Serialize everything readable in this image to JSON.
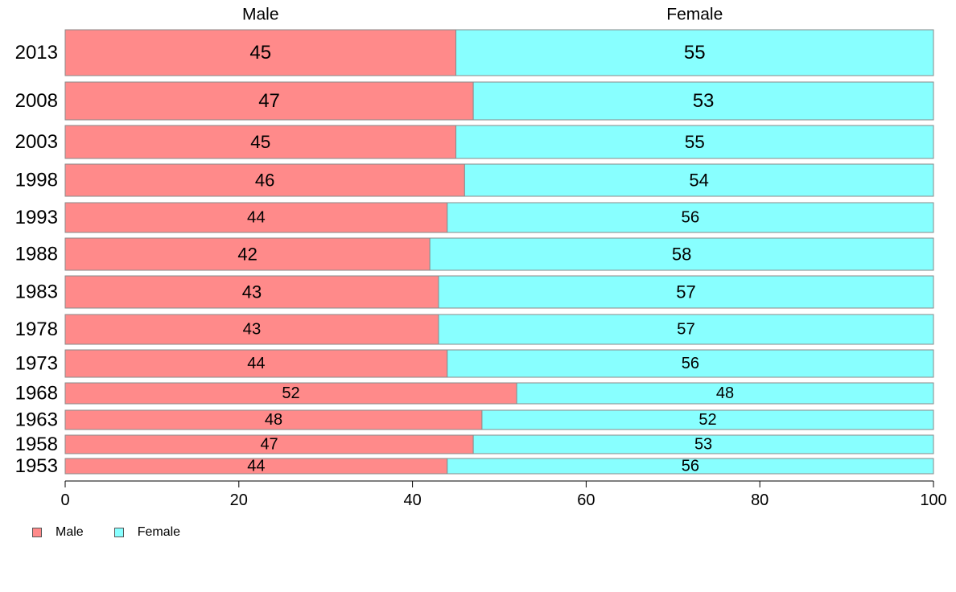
{
  "chart_data": {
    "type": "bar",
    "orientation": "horizontal",
    "stacked": true,
    "categories": [
      "2013",
      "2008",
      "2003",
      "1998",
      "1993",
      "1988",
      "1983",
      "1978",
      "1973",
      "1968",
      "1963",
      "1958",
      "1953"
    ],
    "series": [
      {
        "name": "Male",
        "color": "#ff8a8a",
        "values": [
          45,
          47,
          45,
          46,
          44,
          42,
          43,
          43,
          44,
          52,
          48,
          47,
          44
        ]
      },
      {
        "name": "Female",
        "color": "#88ffff",
        "values": [
          55,
          53,
          55,
          54,
          56,
          58,
          57,
          57,
          56,
          48,
          52,
          53,
          56
        ]
      }
    ],
    "column_headers": [
      "Male",
      "Female"
    ],
    "xticks": [
      "0",
      "20",
      "40",
      "60",
      "80",
      "100"
    ],
    "xlim": [
      0,
      100
    ],
    "grid": false,
    "legend_placement": "bottom-left"
  },
  "legend": {
    "male_label": "Male",
    "female_label": "Female",
    "male_color": "#ff8a8a",
    "female_color": "#88ffff"
  }
}
